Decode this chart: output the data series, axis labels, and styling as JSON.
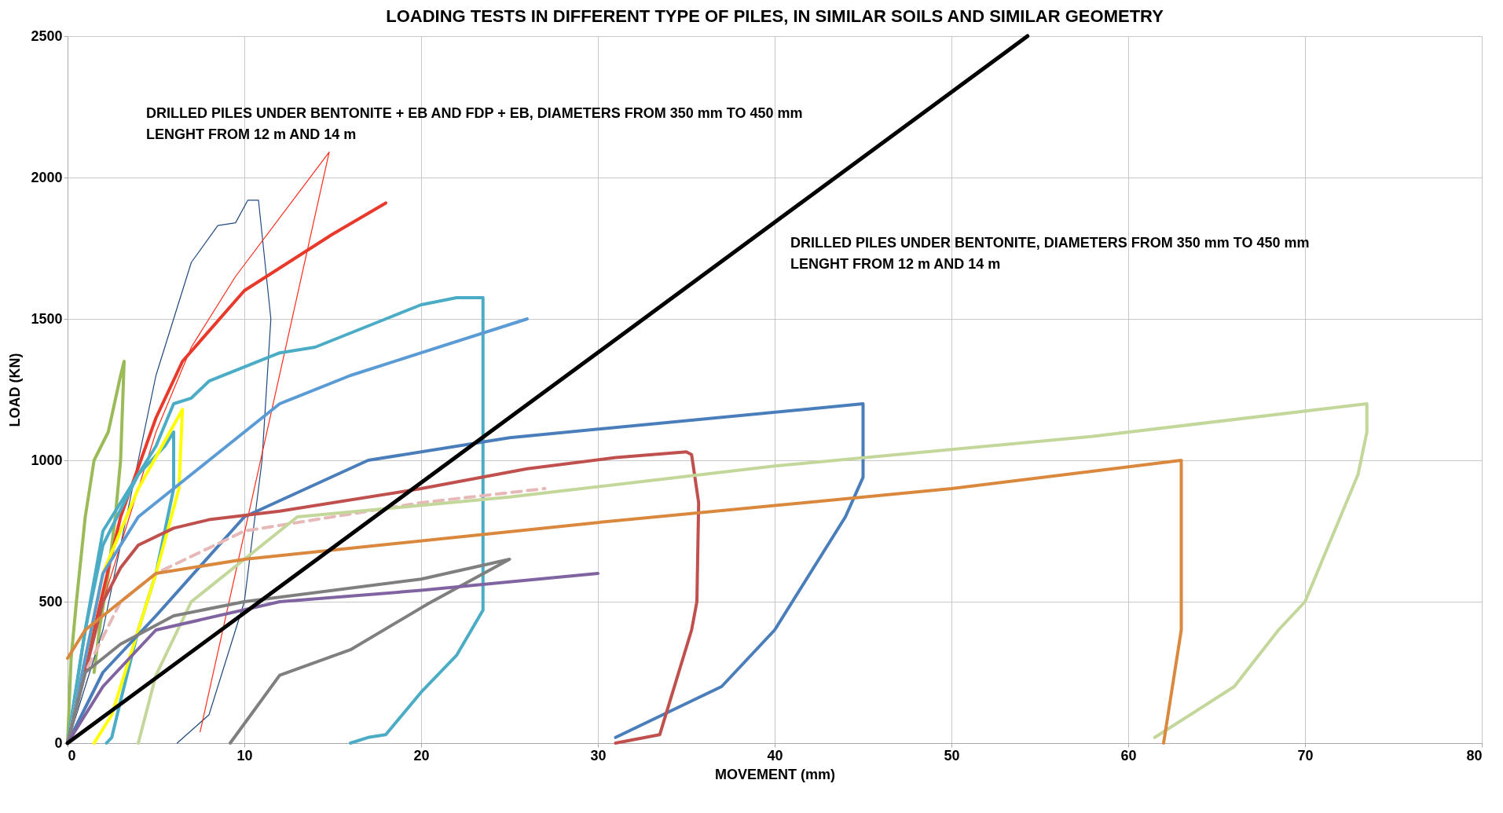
{
  "chart_data": {
    "type": "line",
    "title": "LOADING TESTS IN DIFFERENT TYPE OF PILES, IN SIMILAR SOILS AND SIMILAR GEOMETRY",
    "xlabel": "MOVEMENT (mm)",
    "ylabel": "LOAD (KN)",
    "annotations": [
      "DRILLED PILES UNDER BENTONITE + EB AND FDP + EB, DIAMETERS FROM 350 mm TO 450 mm\nLENGHT FROM 12 m AND 14 m",
      "DRILLED PILES UNDER BENTONITE, DIAMETERS FROM 350 mm TO 450 mm\nLENGHT FROM 12 m AND 14 m"
    ],
    "xlim": [
      0,
      80
    ],
    "xticks": [
      0,
      10,
      20,
      30,
      40,
      50,
      60,
      70,
      80
    ],
    "ylim": [
      0,
      2500
    ],
    "yticks": [
      0,
      500,
      1000,
      1500,
      2000,
      2500
    ],
    "grid": true,
    "line_style": "solid",
    "marker": "none",
    "series": [
      {
        "color": "#9bbb59",
        "x": [
          0,
          0.2,
          0.5,
          1,
          1.5,
          2.3,
          3,
          3.2,
          3,
          2.7,
          2.3,
          1.8,
          1.5
        ],
        "values": [
          0,
          300,
          500,
          800,
          1000,
          1100,
          1300,
          1350,
          1000,
          800,
          600,
          400,
          250
        ]
      },
      {
        "color": "#1f497d",
        "x": [
          0,
          2,
          4,
          5,
          6,
          7,
          8.5,
          9.5,
          10.2,
          10.8,
          11.5,
          11,
          10,
          8,
          6.2
        ],
        "values": [
          0,
          400,
          1000,
          1300,
          1500,
          1700,
          1830,
          1840,
          1920,
          1920,
          1500,
          1000,
          500,
          100,
          0
        ]
      },
      {
        "color": "#ff2a1a",
        "x": [
          0,
          2,
          5,
          7,
          9.5,
          14.8,
          7.5
        ],
        "values": [
          0,
          500,
          1100,
          1400,
          1650,
          2090,
          40
        ]
      },
      {
        "color": "#e8392a",
        "x": [
          0,
          1.5,
          3,
          5,
          6.5,
          10,
          15,
          18
        ],
        "values": [
          0,
          400,
          800,
          1150,
          1350,
          1600,
          1800,
          1910
        ]
      },
      {
        "color": "#4bacc6",
        "x": [
          0,
          1,
          2,
          3,
          4,
          5,
          6,
          7,
          8,
          10,
          12,
          14,
          16,
          18,
          20,
          22,
          23.5,
          23.5,
          22,
          20,
          18,
          17,
          16
        ],
        "values": [
          0,
          400,
          750,
          850,
          950,
          1050,
          1200,
          1220,
          1280,
          1330,
          1380,
          1400,
          1450,
          1500,
          1550,
          1575,
          1575,
          470,
          310,
          180,
          30,
          20,
          0
        ]
      },
      {
        "color": "#4bacc6",
        "x": [
          0,
          1,
          2,
          4,
          5.5,
          6,
          6,
          5,
          4,
          3,
          2.5,
          2.2
        ],
        "values": [
          0,
          400,
          700,
          950,
          1050,
          1100,
          900,
          600,
          400,
          150,
          20,
          0
        ]
      },
      {
        "color": "#ffff00",
        "x": [
          0,
          2,
          4,
          6.5,
          6.3,
          5,
          3.5,
          2.5,
          1.5
        ],
        "values": [
          0,
          600,
          900,
          1180,
          900,
          600,
          300,
          100,
          0
        ]
      },
      {
        "color": "#5b9bd5",
        "x": [
          0,
          2,
          4,
          8,
          12,
          16,
          20,
          26
        ],
        "values": [
          0,
          600,
          800,
          1000,
          1200,
          1300,
          1380,
          1500
        ]
      },
      {
        "color": "#4a7ebb",
        "x": [
          0,
          2,
          5,
          10,
          17,
          25,
          45,
          45,
          44,
          42,
          40,
          37,
          31
        ],
        "values": [
          0,
          250,
          450,
          800,
          1000,
          1080,
          1200,
          940,
          800,
          600,
          400,
          200,
          20
        ]
      },
      {
        "color": "#c0504d",
        "x": [
          0,
          2,
          3,
          4,
          6,
          8,
          12,
          20,
          26,
          31,
          35,
          35.3,
          35.7,
          35.6,
          35.3,
          33.5,
          31
        ],
        "values": [
          0,
          500,
          620,
          700,
          760,
          790,
          820,
          900,
          970,
          1010,
          1030,
          1020,
          850,
          500,
          400,
          30,
          0
        ]
      },
      {
        "color": "#e6b9b8",
        "line_style": "dashed",
        "x": [
          0,
          1,
          3,
          5,
          10,
          20,
          27
        ],
        "values": [
          0,
          250,
          500,
          600,
          750,
          850,
          900
        ]
      },
      {
        "color": "#c4d79b",
        "x": [
          4,
          5,
          7,
          13,
          25,
          40,
          58,
          73.5,
          73.5,
          73,
          72,
          70,
          68.5,
          66,
          61.5
        ],
        "values": [
          0,
          240,
          500,
          800,
          870,
          980,
          1085,
          1200,
          1100,
          950,
          800,
          500,
          400,
          200,
          20
        ]
      },
      {
        "color": "#d9883d",
        "x": [
          0,
          1,
          3,
          5,
          10,
          30,
          50,
          63,
          63,
          62.5,
          62
        ],
        "values": [
          300,
          400,
          500,
          600,
          650,
          780,
          900,
          1000,
          400,
          200,
          0
        ]
      },
      {
        "color": "#7f7f7f",
        "x": [
          0,
          1,
          3,
          6,
          10,
          20,
          25,
          20.4,
          16,
          12,
          9.2
        ],
        "values": [
          0,
          250,
          350,
          450,
          500,
          580,
          650,
          493,
          330,
          240,
          0
        ]
      },
      {
        "color": "#8064a2",
        "x": [
          0,
          2,
          5,
          12,
          20,
          30
        ],
        "values": [
          0,
          200,
          400,
          500,
          540,
          600
        ]
      },
      {
        "color": "#000000",
        "x": [
          0,
          54.3
        ],
        "values": [
          0,
          2500
        ]
      }
    ]
  }
}
